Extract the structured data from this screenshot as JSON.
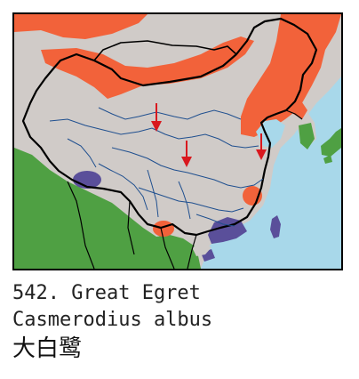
{
  "caption": {
    "number_common": "542. Great Egret",
    "scientific": "Casmerodius albus",
    "chinese": "大白鹭"
  },
  "colors": {
    "sea": "#a8d8ea",
    "land": "#d0cbc8",
    "breeding": "#f2623a",
    "wintering": "#5a4f9a",
    "resident": "#4fa043",
    "border": "#000000",
    "river": "#1f4f8f",
    "arrow": "#d9181e"
  },
  "legend_semantics": {
    "arrow": "migration-direction"
  }
}
